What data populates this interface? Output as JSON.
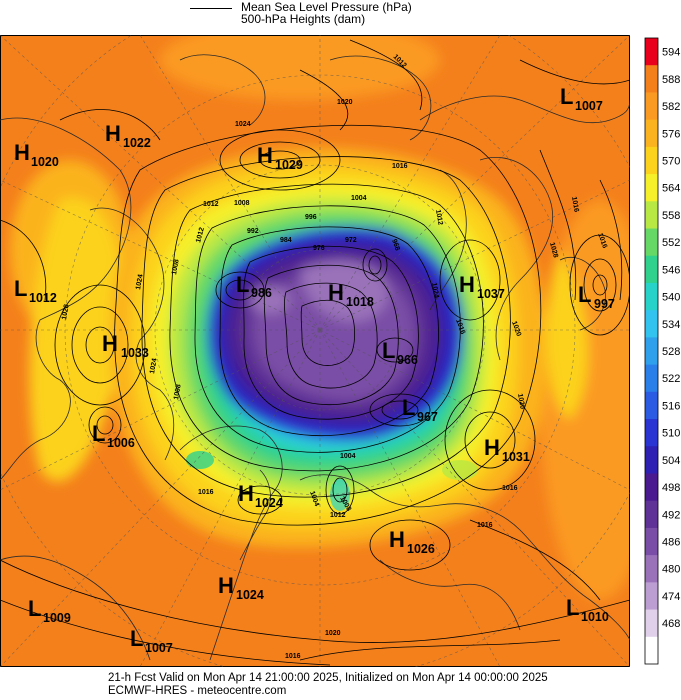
{
  "header": {
    "line1": "Mean Sea Level Pressure (hPa)",
    "line2": "500-hPa Heights (dam)"
  },
  "colorbar": {
    "labels": [
      "594",
      "588",
      "582",
      "576",
      "570",
      "564",
      "558",
      "552",
      "546",
      "540",
      "534",
      "528",
      "522",
      "516",
      "510",
      "504",
      "498",
      "492",
      "486",
      "480",
      "474",
      "468"
    ],
    "colors": [
      "#e8001c",
      "#f4801c",
      "#fb9a22",
      "#fbb31f",
      "#fcd21d",
      "#f6f02a",
      "#b8e844",
      "#66d866",
      "#2fd18d",
      "#27d2c8",
      "#32c3ee",
      "#2fa1ec",
      "#2a7fe9",
      "#2a5be2",
      "#2a34d2",
      "#2d20b2",
      "#4a1a90",
      "#5e3296",
      "#7a4ea6",
      "#9a72ba",
      "#bd9ed2",
      "#e0d0ea",
      "#ffffff"
    ]
  },
  "pressure_centers": [
    {
      "letter": "H",
      "value": "1020"
    },
    {
      "letter": "H",
      "value": "1022"
    },
    {
      "letter": "H",
      "value": "1029"
    },
    {
      "letter": "L",
      "value": "1007"
    },
    {
      "letter": "L",
      "value": "1012"
    },
    {
      "letter": "H",
      "value": "1033"
    },
    {
      "letter": "L",
      "value": "1006"
    },
    {
      "letter": "L",
      "value": "986"
    },
    {
      "letter": "H",
      "value": "1018"
    },
    {
      "letter": "H",
      "value": "1037"
    },
    {
      "letter": "L",
      "value": "997"
    },
    {
      "letter": "L",
      "value": "966"
    },
    {
      "letter": "L",
      "value": "967"
    },
    {
      "letter": "H",
      "value": "1031"
    },
    {
      "letter": "H",
      "value": "1024"
    },
    {
      "letter": "H",
      "value": "1026"
    },
    {
      "letter": "H",
      "value": "1024"
    },
    {
      "letter": "L",
      "value": "1009"
    },
    {
      "letter": "L",
      "value": "1007"
    },
    {
      "letter": "L",
      "value": "1010"
    }
  ],
  "contour_labels": [
    "1012",
    "1020",
    "1024",
    "1016",
    "1012",
    "1008",
    "1004",
    "996",
    "992",
    "984",
    "976",
    "972",
    "968",
    "1012",
    "1016",
    "1012",
    "1008",
    "1024",
    "1028",
    "1024",
    "1016",
    "1020",
    "1016",
    "1024",
    "1020",
    "1028",
    "1004",
    "1008",
    "1004",
    "1016",
    "1008",
    "1012",
    "1016",
    "1020",
    "1016",
    "1016"
  ],
  "footer": {
    "line1": "21-h Fcst Valid on Mon Apr 14 21:00:00 2025, Initialized on Mon Apr 14 00:00:00 2025",
    "line2": "ECMWF-HRES - meteocentre.com"
  }
}
